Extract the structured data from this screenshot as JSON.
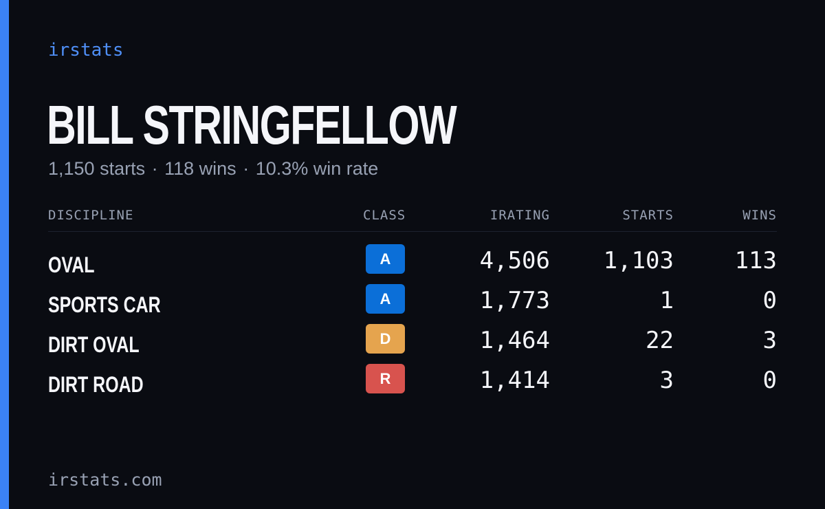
{
  "brand": "irstats",
  "driver": {
    "name": "BILL STRINGFELLOW",
    "summary": {
      "starts": "1,150 starts",
      "separator": "·",
      "wins": "118 wins",
      "win_rate": "10.3% win rate"
    }
  },
  "table": {
    "headers": {
      "discipline": "DISCIPLINE",
      "class": "CLASS",
      "irating": "IRATING",
      "starts": "STARTS",
      "wins": "WINS"
    },
    "rows": [
      {
        "discipline": "OVAL",
        "class": "A",
        "class_color": "#0b6fd8",
        "irating": "4,506",
        "starts": "1,103",
        "wins": "113"
      },
      {
        "discipline": "SPORTS CAR",
        "class": "A",
        "class_color": "#0b6fd8",
        "irating": "1,773",
        "starts": "1",
        "wins": "0"
      },
      {
        "discipline": "DIRT OVAL",
        "class": "D",
        "class_color": "#e5a44e",
        "irating": "1,464",
        "starts": "22",
        "wins": "3"
      },
      {
        "discipline": "DIRT ROAD",
        "class": "R",
        "class_color": "#d8534e",
        "irating": "1,414",
        "starts": "3",
        "wins": "0"
      }
    ]
  },
  "footer": "irstats.com",
  "colors": {
    "background": "#0a0c12",
    "accent": "#3b82f6",
    "brand": "#4f8ff7",
    "muted_text": "#98a1b3",
    "primary_text": "#f5f6fa"
  }
}
